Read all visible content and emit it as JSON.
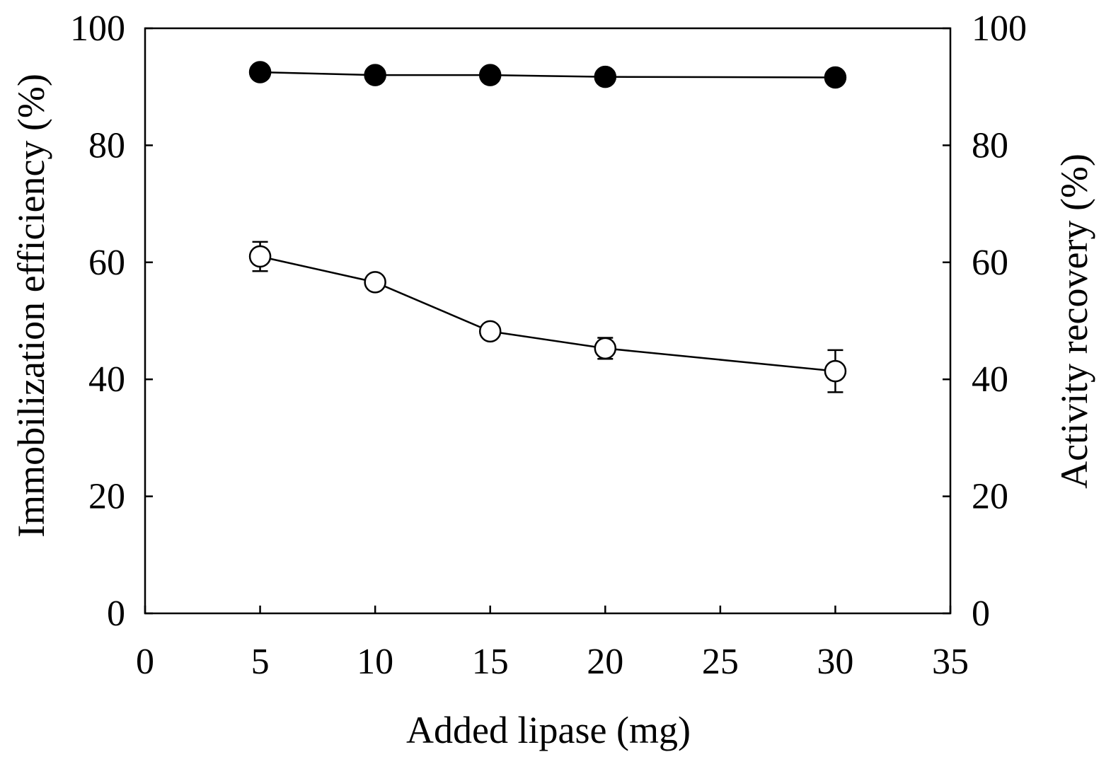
{
  "chart_data": {
    "type": "line",
    "title": "",
    "xlabel": "Added lipase (mg)",
    "ylabel": "Immobilization efficiency (%)",
    "y2label": "Activity recovery (%)",
    "xlim": [
      0,
      35
    ],
    "ylim": [
      0,
      100
    ],
    "y2lim": [
      0,
      100
    ],
    "x_ticks": [
      0,
      5,
      10,
      15,
      20,
      25,
      30,
      35
    ],
    "y_ticks": [
      0,
      20,
      40,
      60,
      80,
      100
    ],
    "y2_ticks": [
      0,
      20,
      40,
      60,
      80,
      100
    ],
    "grid": false,
    "series": [
      {
        "name": "Immobilization efficiency",
        "axis": "left",
        "marker": "filled-circle",
        "x": [
          5,
          10,
          15,
          20,
          30
        ],
        "values": [
          92.5,
          92.0,
          92.0,
          91.7,
          91.6
        ],
        "errors": [
          0,
          0,
          0,
          0,
          0
        ]
      },
      {
        "name": "Activity recovery",
        "axis": "right",
        "marker": "open-circle",
        "x": [
          5,
          10,
          15,
          20,
          30
        ],
        "values": [
          61.0,
          56.6,
          48.2,
          45.3,
          41.4
        ],
        "errors": [
          2.5,
          0,
          0,
          1.8,
          3.6
        ]
      }
    ]
  }
}
